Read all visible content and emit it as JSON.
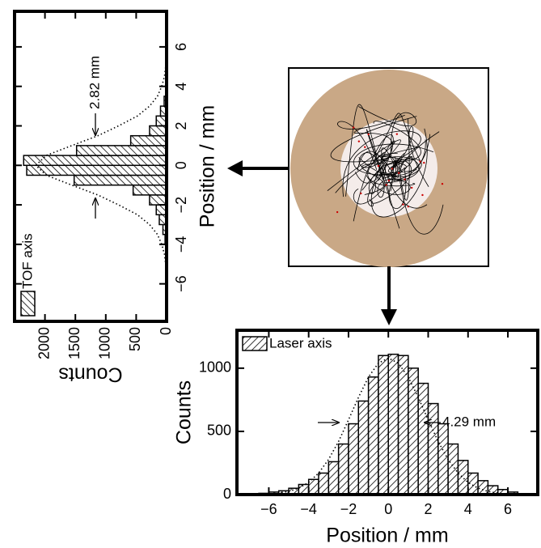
{
  "chart_data": [
    {
      "type": "histogram",
      "xlabel": "Position / mm",
      "ylabel": "Counts",
      "xlim": [
        -7.9,
        7.8
      ],
      "ylim": [
        0,
        2500
      ],
      "xticks": [
        {
          "value": -6,
          "label": "−6"
        },
        {
          "value": -4,
          "label": "−4"
        },
        {
          "value": -2,
          "label": "−2"
        },
        0,
        2,
        4,
        6
      ],
      "yticks": [
        0,
        500,
        1000,
        1500,
        2000
      ],
      "bins": [
        -4,
        -3.5,
        -3,
        -2.5,
        -2,
        -1.5,
        -1,
        -0.5,
        0,
        0.5,
        1,
        1.5,
        2,
        2.5,
        3,
        3.5,
        4
      ],
      "series": [
        {
          "name": "TOF axis",
          "color": "#000000",
          "values": [
            25,
            60,
            120,
            170,
            280,
            550,
            1520,
            2300,
            2350,
            1480,
            590,
            280,
            170,
            100,
            40,
            15
          ]
        }
      ],
      "fit": {
        "x": [
          -6,
          -5.5,
          -5,
          -4.5,
          -4,
          -3.5,
          -3,
          -2.5,
          -2,
          -1.5,
          -1,
          -0.5,
          0,
          0.5,
          1,
          1.5,
          2,
          2.5,
          3,
          3.5,
          4,
          4.5,
          5,
          5.5,
          6
        ],
        "values": [
          2,
          6,
          15,
          35,
          80,
          150,
          280,
          480,
          790,
          1130,
          1560,
          1980,
          2150,
          1980,
          1560,
          1130,
          790,
          480,
          280,
          150,
          80,
          35,
          15,
          6,
          2
        ]
      },
      "annotation": "2.82 mm",
      "legend": "upper left",
      "orientation": "rotated"
    },
    {
      "type": "histogram",
      "xlabel": "Position / mm",
      "ylabel": "Counts",
      "xlim": [
        -7.6,
        7.5
      ],
      "ylim": [
        0,
        1300
      ],
      "xticks": [
        {
          "value": -6,
          "label": "−6"
        },
        {
          "value": -4,
          "label": "−4"
        },
        {
          "value": -2,
          "label": "−2"
        },
        0,
        2,
        4,
        6
      ],
      "yticks": [
        0,
        500,
        1000
      ],
      "bins": [
        -6.5,
        -6,
        -5.5,
        -5,
        -4.5,
        -4,
        -3.5,
        -3,
        -2.5,
        -2,
        -1.5,
        -1,
        -0.5,
        0,
        0.5,
        1,
        1.5,
        2,
        2.5,
        3,
        3.5,
        4,
        4.5,
        5,
        5.5,
        6,
        6.5
      ],
      "series": [
        {
          "name": "Laser axis",
          "color": "#000000",
          "values": [
            10,
            20,
            30,
            50,
            80,
            120,
            170,
            260,
            400,
            560,
            740,
            930,
            1100,
            1110,
            1100,
            1000,
            880,
            720,
            560,
            400,
            270,
            170,
            110,
            70,
            40,
            20
          ]
        }
      ],
      "fit": {
        "x": [
          -7,
          -6.5,
          -6,
          -5.5,
          -5,
          -4.5,
          -4,
          -3.5,
          -3,
          -2.5,
          -2,
          -1.5,
          -1,
          -0.5,
          0,
          0.5,
          1,
          1.5,
          2,
          2.5,
          3,
          3.5,
          4,
          4.5,
          5,
          5.5,
          6,
          6.5,
          7
        ],
        "values": [
          1,
          2,
          5,
          11,
          25,
          51,
          96,
          170,
          278,
          420,
          591,
          769,
          929,
          1040,
          1080,
          1040,
          929,
          769,
          591,
          420,
          278,
          170,
          96,
          51,
          25,
          11,
          5,
          2,
          1
        ]
      },
      "annotation": "4.29 mm",
      "legend": "upper left",
      "orientation": "normal"
    }
  ]
}
